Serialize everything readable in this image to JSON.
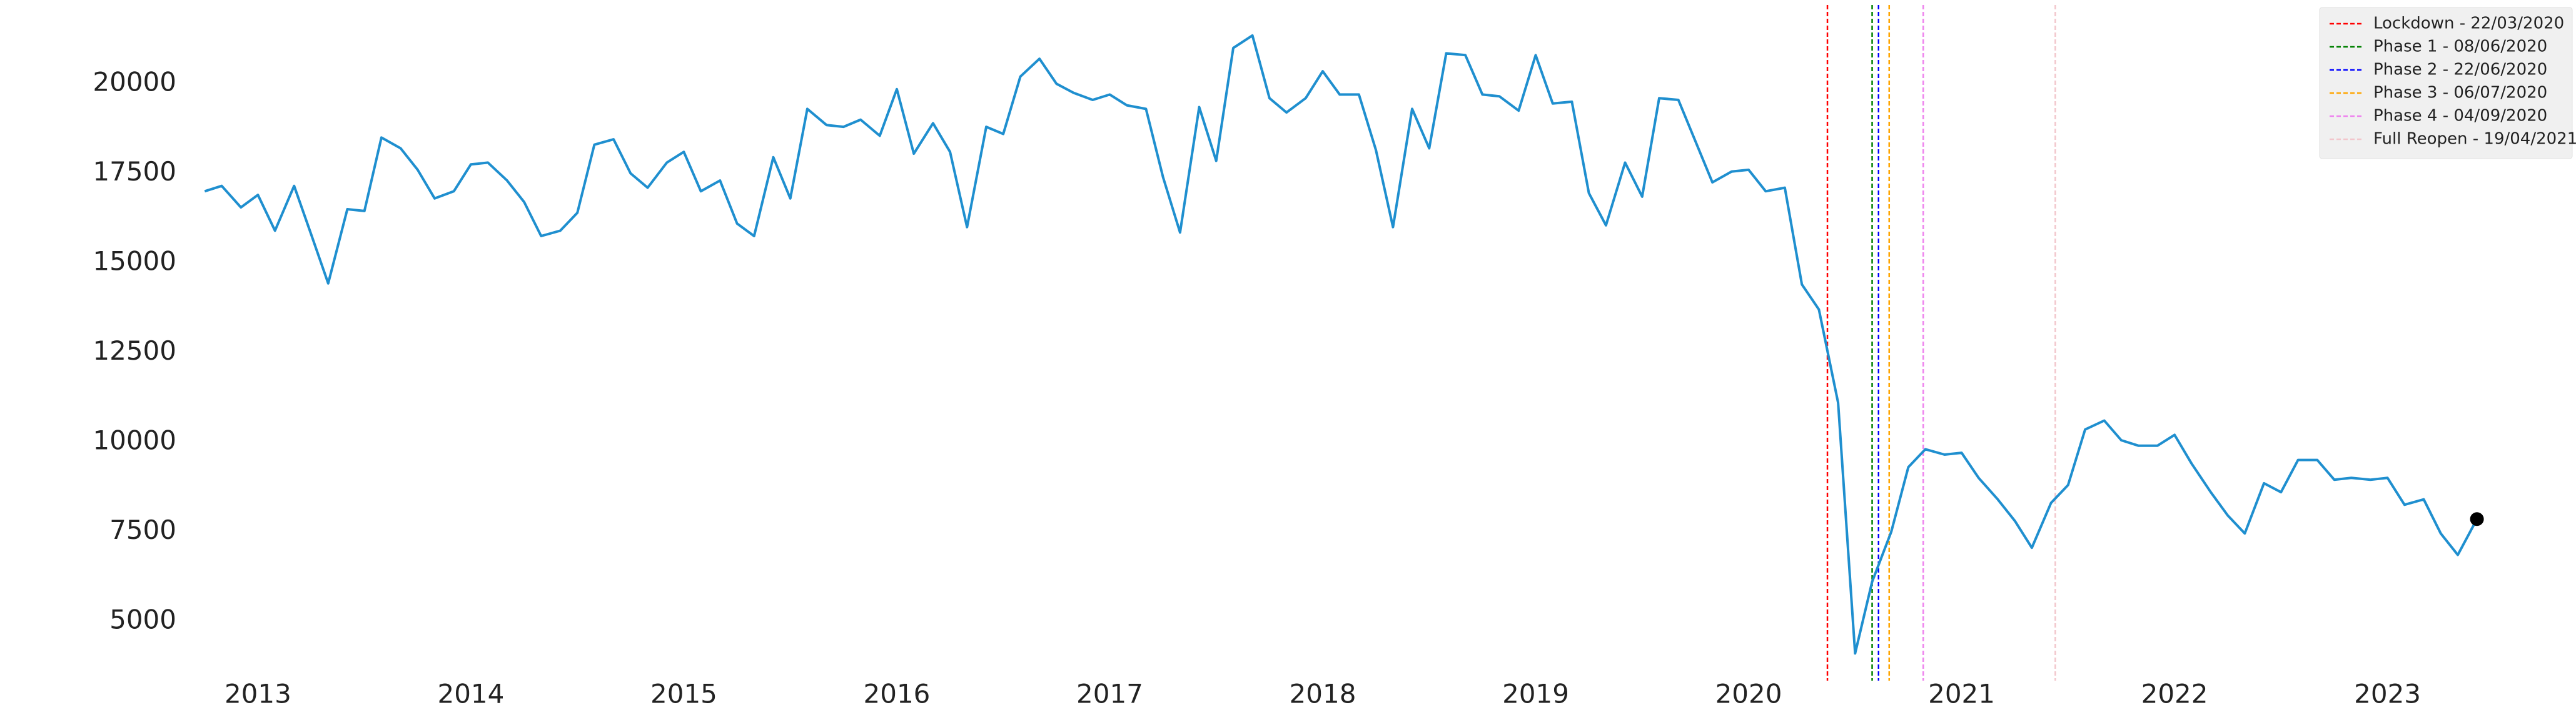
{
  "chart_data": {
    "type": "line",
    "x": [
      2012.75,
      2012.83,
      2012.92,
      2013,
      2013.08,
      2013.17,
      2013.25,
      2013.33,
      2013.42,
      2013.5,
      2013.58,
      2013.67,
      2013.75,
      2013.83,
      2013.92,
      2014,
      2014.08,
      2014.17,
      2014.25,
      2014.33,
      2014.42,
      2014.5,
      2014.58,
      2014.67,
      2014.75,
      2014.83,
      2014.92,
      2015,
      2015.08,
      2015.17,
      2015.25,
      2015.33,
      2015.42,
      2015.5,
      2015.58,
      2015.67,
      2015.75,
      2015.83,
      2015.92,
      2016,
      2016.08,
      2016.17,
      2016.25,
      2016.33,
      2016.42,
      2016.5,
      2016.58,
      2016.67,
      2016.75,
      2016.83,
      2016.92,
      2017,
      2017.08,
      2017.17,
      2017.25,
      2017.33,
      2017.42,
      2017.5,
      2017.58,
      2017.67,
      2017.75,
      2017.83,
      2017.92,
      2018,
      2018.08,
      2018.17,
      2018.25,
      2018.33,
      2018.42,
      2018.5,
      2018.58,
      2018.67,
      2018.75,
      2018.83,
      2018.92,
      2019,
      2019.08,
      2019.17,
      2019.25,
      2019.33,
      2019.42,
      2019.5,
      2019.58,
      2019.67,
      2019.75,
      2019.83,
      2019.92,
      2020,
      2020.08,
      2020.17,
      2020.25,
      2020.33,
      2020.42,
      2020.5,
      2020.58,
      2020.67,
      2020.75,
      2020.83,
      2020.92,
      2021,
      2021.08,
      2021.17,
      2021.25,
      2021.33,
      2021.42,
      2021.5,
      2021.58,
      2021.67,
      2021.75,
      2021.83,
      2021.92,
      2022,
      2022.08,
      2022.17,
      2022.25,
      2022.33,
      2022.42,
      2022.5,
      2022.58,
      2022.67,
      2022.75,
      2022.83,
      2022.92,
      2023,
      2023.08,
      2023.17,
      2023.25,
      2023.33,
      2023.42
    ],
    "values": [
      17000,
      17150,
      16550,
      16900,
      15900,
      17150,
      15800,
      14430,
      16500,
      16450,
      18500,
      18200,
      17600,
      16800,
      17000,
      17750,
      17800,
      17300,
      16700,
      15750,
      15900,
      16400,
      18300,
      18450,
      17500,
      17100,
      17800,
      18100,
      17000,
      17300,
      16100,
      15750,
      17950,
      16800,
      19300,
      18850,
      18800,
      19000,
      18550,
      19850,
      18050,
      18900,
      18100,
      16000,
      18800,
      18600,
      20200,
      20700,
      20000,
      19750,
      19550,
      19700,
      19400,
      19300,
      17400,
      15850,
      19350,
      17850,
      21000,
      21350,
      19600,
      19200,
      19600,
      20350,
      19700,
      19700,
      18150,
      16000,
      19300,
      18200,
      20850,
      20800,
      19700,
      19650,
      19250,
      20800,
      19450,
      19500,
      16950,
      16050,
      17800,
      16850,
      19600,
      19550,
      18400,
      17250,
      17550,
      17600,
      17000,
      17100,
      14400,
      13700,
      11100,
      4100,
      6100,
      7500,
      9300,
      9800,
      9650,
      9700,
      9000,
      8400,
      7800,
      7050,
      8300,
      8800,
      10350,
      10600,
      10050,
      9900,
      9900,
      10200,
      9400,
      8600,
      7950,
      7450,
      8850,
      8600,
      9500,
      9500,
      8950,
      9000,
      8950,
      9000,
      8250,
      8400,
      7450,
      6850,
      7850
    ],
    "color": "#1f8fcf",
    "end_marker": true,
    "xlim": [
      2012.2,
      2023.8
    ],
    "xticks": [
      2013,
      2014,
      2015,
      2016,
      2017,
      2018,
      2019,
      2020,
      2021,
      2022,
      2023
    ],
    "ylim": [
      3340,
      22200
    ],
    "yticks": [
      5000,
      7500,
      10000,
      12500,
      15000,
      17500,
      20000
    ],
    "grid": false,
    "legend": "upper right",
    "events": [
      {
        "label": "Lockdown - 22/03/2020",
        "x": 2020.37,
        "color": "#ff0000"
      },
      {
        "label": "Phase 1 - 08/06/2020",
        "x": 2020.58,
        "color": "#008000"
      },
      {
        "label": "Phase 2 - 22/06/2020",
        "x": 2020.61,
        "color": "#0000ff"
      },
      {
        "label": "Phase 3 - 06/07/2020",
        "x": 2020.66,
        "color": "#ffa500"
      },
      {
        "label": "Phase 4 - 04/09/2020",
        "x": 2020.82,
        "color": "#ee82ee"
      },
      {
        "label": "Full Reopen - 19/04/2021",
        "x": 2021.44,
        "color": "#f2c6cc"
      }
    ]
  }
}
